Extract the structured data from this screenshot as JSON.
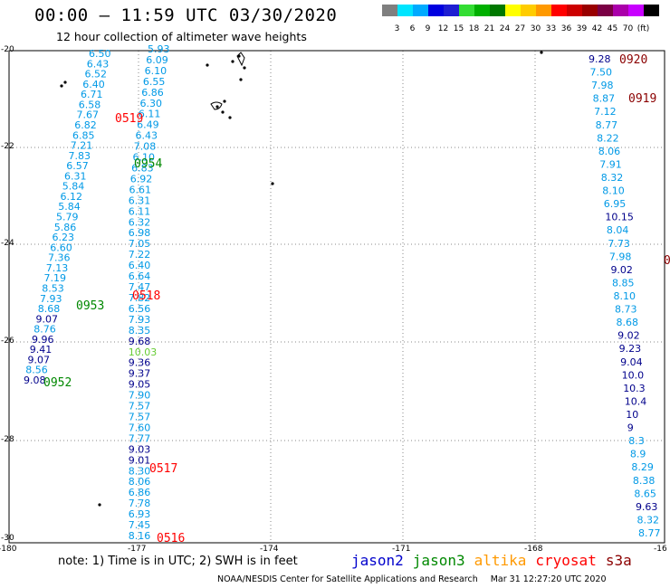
{
  "header": {
    "title": "00:00 – 11:59 UTC 03/30/2020",
    "subtitle": "12 hour collection of altimeter wave heights"
  },
  "colorbar": {
    "colors": [
      "#7f7f7f",
      "#00e5ff",
      "#00aaff",
      "#0000e0",
      "#1e1ed2",
      "#33dd33",
      "#00b000",
      "#007800",
      "#ffff00",
      "#ffcc00",
      "#ff9900",
      "#ff0000",
      "#cc0000",
      "#990000",
      "#7a0044",
      "#aa00aa",
      "#c800ff",
      "#000000"
    ],
    "labels": [
      "3",
      "6",
      "9",
      "12",
      "15",
      "18",
      "21",
      "24",
      "27",
      "30",
      "33",
      "36",
      "39",
      "42",
      "45",
      "70",
      "(ft)"
    ]
  },
  "axes": {
    "lon_ticks": [
      "-180",
      "-177",
      "-174",
      "-171",
      "-168",
      "-16"
    ],
    "lat_ticks": [
      "-20",
      "-22",
      "-24",
      "-26",
      "-28",
      "-30"
    ]
  },
  "satellite_colors": {
    "jason2": "#0000cc",
    "jason3": "#008800",
    "altika": "#ff9900",
    "cryosat": "#ff0000",
    "s3a": "#8b0000",
    "wave": "#0099e6",
    "wave_dark": "#00008b"
  },
  "time_labels": [
    {
      "text": "0519",
      "sat": "cryosat"
    },
    {
      "text": "0954",
      "sat": "jason3"
    },
    {
      "text": "0518",
      "sat": "cryosat"
    },
    {
      "text": "0953",
      "sat": "jason3"
    },
    {
      "text": "0952",
      "sat": "jason3"
    },
    {
      "text": "0517",
      "sat": "cryosat"
    },
    {
      "text": "0516",
      "sat": "cryosat"
    },
    {
      "text": "0920",
      "sat": "s3a"
    },
    {
      "text": "0919",
      "sat": "s3a"
    },
    {
      "text": "0",
      "sat": "s3a"
    }
  ],
  "tracks": {
    "track_a": [
      "6.50",
      "6.43",
      "6.52",
      "6.40",
      "6.71",
      "6.58",
      "7.67",
      "6.82",
      "6.85",
      "7.21",
      "7.83",
      "6.57",
      "6.31",
      "5.84",
      "6.12",
      "5.84",
      "5.79",
      "5.86",
      "6.23",
      "6.60",
      "7.36",
      "7.13",
      "7.19",
      "8.53",
      "7.93",
      "8.68",
      "9.07",
      "8.76",
      "9.96",
      "9.41",
      "9.07",
      "8.56",
      "9.08"
    ],
    "track_b": [
      "5.93",
      "6.09",
      "6.10",
      "6.55",
      "6.86",
      "6.30",
      "6.11",
      "6.49",
      "6.43",
      "7.08",
      "6.10",
      "6.83",
      "6.92",
      "6.61",
      "6.31",
      "6.11",
      "6.32",
      "6.98",
      "7.05",
      "7.22",
      "6.40",
      "6.64",
      "7.47",
      "7.82",
      "6.56",
      "7.93",
      "8.35",
      "9.68",
      "10.03",
      "9.36",
      "9.37",
      "9.05",
      "7.90",
      "7.57",
      "7.57",
      "7.60",
      "7.77",
      "9.03",
      "9.01",
      "8.30",
      "8.06",
      "6.86",
      "7.78",
      "6.93",
      "7.45",
      "8.16"
    ],
    "track_c": [
      "9.28",
      "7.50",
      "7.98",
      "8.87",
      "7.12",
      "8.77",
      "8.22",
      "8.06",
      "7.91",
      "8.32",
      "8.10",
      "6.95",
      "10.15",
      "8.04",
      "7.73",
      "7.98",
      "9.02",
      "8.85",
      "8.10",
      "8.73",
      "8.68",
      "9.02",
      "9.23",
      "9.04",
      "10.0",
      "10.3",
      "10.4",
      "10",
      "9",
      "8.3",
      "8.9",
      "8.29",
      "8.38",
      "8.65",
      "9.63",
      "8.32",
      "8.77"
    ]
  },
  "note": "note: 1) Time is in UTC; 2) SWH is in feet",
  "legend": [
    "jason2",
    "jason3",
    "altika",
    "cryosat",
    "s3a"
  ],
  "credit": {
    "org": "NOAA/NESDIS Center for Satellite Applications and Research",
    "timestamp": "Mar 31 12:27:20 UTC 2020"
  }
}
